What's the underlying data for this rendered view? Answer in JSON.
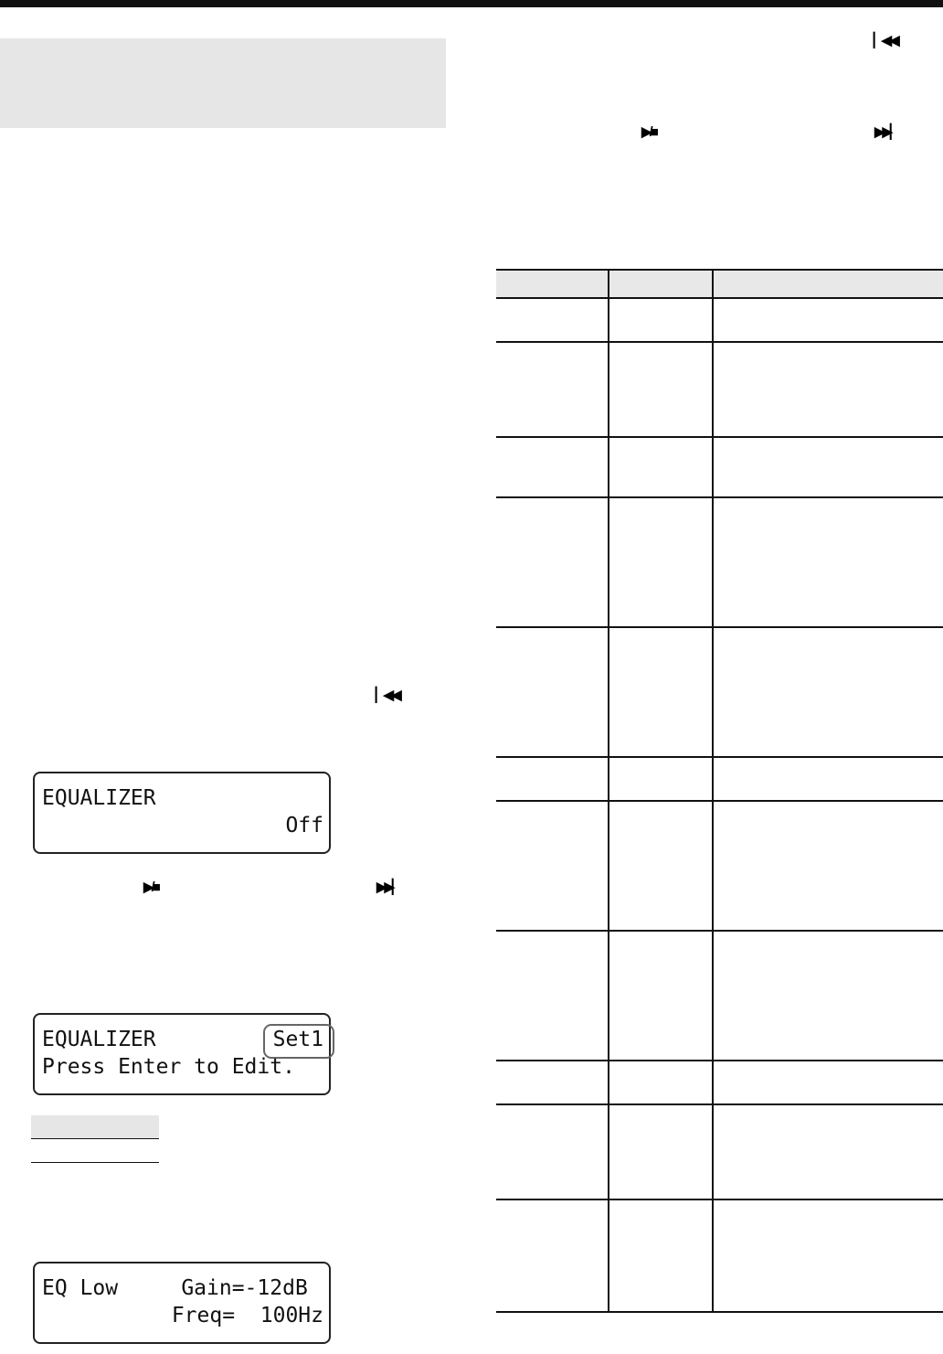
{
  "icons": {
    "prev": "skip-back-icon",
    "play_stop": "play-stop-icon",
    "next": "skip-forward-icon"
  },
  "lcd1": {
    "line1": "EQUALIZER",
    "line2": "Off"
  },
  "lcd2": {
    "line1": "EQUALIZER",
    "value": "Set1",
    "line2": "Press Enter to Edit."
  },
  "lcd3": {
    "line1": "EQ Low     Gain=-12dB",
    "line2": "Freq=  100Hz"
  }
}
